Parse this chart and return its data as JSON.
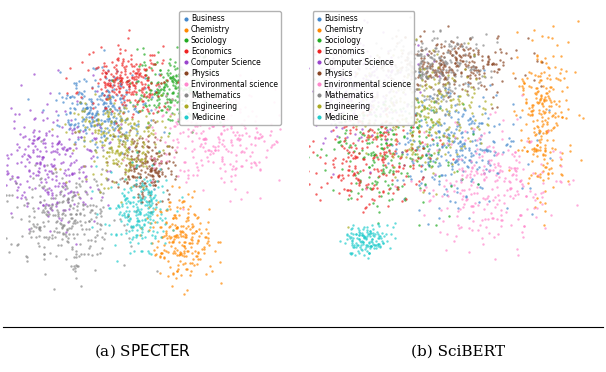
{
  "categories": [
    "Business",
    "Chemistry",
    "Sociology",
    "Economics",
    "Computer Science",
    "Physics",
    "Environmental science",
    "Mathematics",
    "Engineering",
    "Medicine"
  ],
  "colors": [
    "#4488cc",
    "#ff8800",
    "#22aa22",
    "#ee2222",
    "#9944cc",
    "#884422",
    "#ff88cc",
    "#888888",
    "#aaaa22",
    "#22cccc"
  ],
  "figsize": [
    6.06,
    3.72
  ],
  "dpi": 100,
  "legend_fontsize": 5.5,
  "caption_fontsize": 11,
  "marker_size": 3,
  "alpha": 0.7
}
